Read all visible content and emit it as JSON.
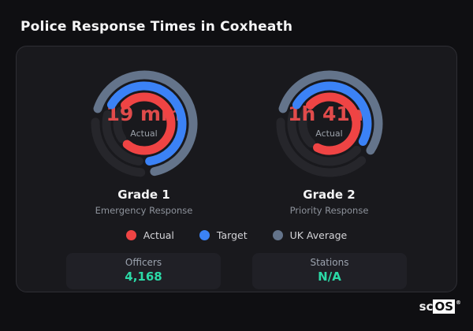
{
  "page_title": "Police Response Times in Coxheath",
  "colors": {
    "actual": "#ef4444",
    "target": "#3b82f6",
    "uk_average": "#64748b",
    "track": "#26262b",
    "value_accent": "#2bd9a6",
    "value_text": "#e14b4b"
  },
  "gauges": [
    {
      "title": "Grade 1",
      "subtitle": "Emergency Response",
      "center_value": "19 min",
      "center_label": "Actual",
      "rings": [
        {
          "series": "uk_average",
          "radius": 62,
          "start_deg": -72,
          "end_deg": 168
        },
        {
          "series": "target",
          "radius": 48,
          "start_deg": -60,
          "end_deg": 172
        },
        {
          "series": "actual",
          "radius": 34,
          "start_deg": -46,
          "end_deg": 220
        }
      ]
    },
    {
      "title": "Grade 2",
      "subtitle": "Priority Response",
      "center_value": "1h 41m",
      "center_label": "Actual",
      "rings": [
        {
          "series": "uk_average",
          "radius": 62,
          "start_deg": -72,
          "end_deg": 123
        },
        {
          "series": "target",
          "radius": 48,
          "start_deg": -60,
          "end_deg": 118
        },
        {
          "series": "actual",
          "radius": 34,
          "start_deg": -46,
          "end_deg": 207
        }
      ]
    }
  ],
  "legend": [
    {
      "label": "Actual",
      "series": "actual"
    },
    {
      "label": "Target",
      "series": "target"
    },
    {
      "label": "UK Average",
      "series": "uk_average"
    }
  ],
  "stats": [
    {
      "label": "Officers",
      "value": "4,168"
    },
    {
      "label": "Stations",
      "value": "N/A"
    }
  ],
  "logo": {
    "prefix": "sc",
    "suffix": "OS",
    "reg": "®"
  },
  "chart_data": [
    {
      "type": "radial-gauge",
      "title": "Grade 1",
      "subtitle": "Emergency Response",
      "center_value": "19 min",
      "center_label": "Actual",
      "series": [
        {
          "name": "Actual",
          "sweep_deg": 266,
          "ring": "inner"
        },
        {
          "name": "Target",
          "sweep_deg": 232,
          "ring": "middle"
        },
        {
          "name": "UK Average",
          "sweep_deg": 240,
          "ring": "outer"
        }
      ],
      "legend_position": "bottom-center"
    },
    {
      "type": "radial-gauge",
      "title": "Grade 2",
      "subtitle": "Priority Response",
      "center_value": "1h 41m",
      "center_label": "Actual",
      "series": [
        {
          "name": "Actual",
          "sweep_deg": 253,
          "ring": "inner"
        },
        {
          "name": "Target",
          "sweep_deg": 178,
          "ring": "middle"
        },
        {
          "name": "UK Average",
          "sweep_deg": 195,
          "ring": "outer"
        }
      ],
      "legend_position": "bottom-center"
    }
  ]
}
